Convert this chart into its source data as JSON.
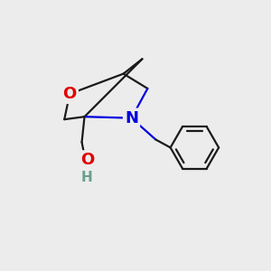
{
  "background_color": "#ececec",
  "line_color": "#1a1a1a",
  "oxygen_color": "#e00000",
  "nitrogen_color": "#0000e0",
  "oh_o_color": "#e00000",
  "oh_h_color": "#6b9e8a",
  "line_width": 1.6,
  "font_size_atom": 13,
  "figsize": [
    3.0,
    3.0
  ],
  "dpi": 100,
  "xlim": [
    0,
    10
  ],
  "ylim": [
    0,
    10
  ]
}
